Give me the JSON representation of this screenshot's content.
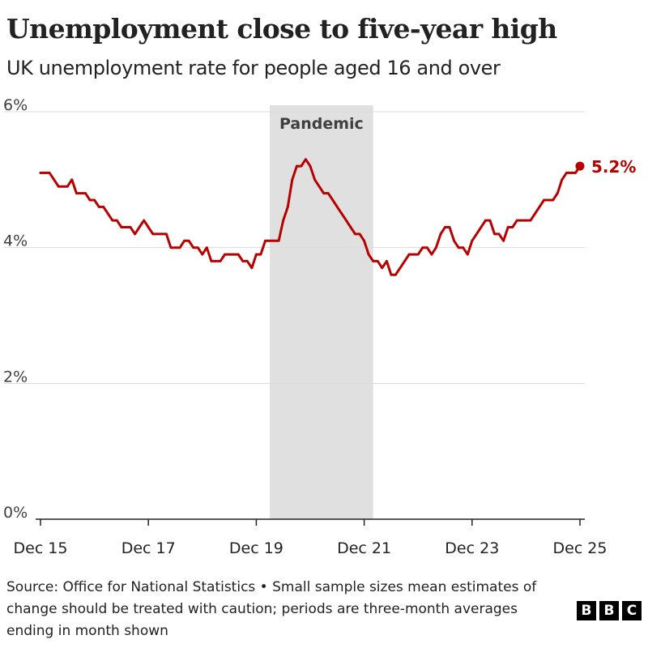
{
  "chart_data": {
    "type": "line",
    "title": "Unemployment close to five-year high",
    "subtitle": "UK unemployment rate for people aged 16 and over",
    "ylim": [
      0,
      6
    ],
    "y_ticks": [
      "0%",
      "2%",
      "4%",
      "6%"
    ],
    "x_ticks": [
      "Dec 15",
      "Dec 17",
      "Dec 19",
      "Dec 21",
      "Dec 23",
      "Dec 25"
    ],
    "xlabel": "",
    "ylabel": "",
    "shaded_region": {
      "label": "Pandemic",
      "from": "Mar 20",
      "to": "Feb 22"
    },
    "end_label": "5.2%",
    "series": [
      {
        "name": "UK unemployment rate (16+)",
        "color": "#b80000",
        "x": [
          "Dec 15",
          "Jan 16",
          "Feb 16",
          "Mar 16",
          "Apr 16",
          "May 16",
          "Jun 16",
          "Jul 16",
          "Aug 16",
          "Sep 16",
          "Oct 16",
          "Nov 16",
          "Dec 16",
          "Jan 17",
          "Feb 17",
          "Mar 17",
          "Apr 17",
          "May 17",
          "Jun 17",
          "Jul 17",
          "Aug 17",
          "Sep 17",
          "Oct 17",
          "Nov 17",
          "Dec 17",
          "Jan 18",
          "Feb 18",
          "Mar 18",
          "Apr 18",
          "May 18",
          "Jun 18",
          "Jul 18",
          "Aug 18",
          "Sep 18",
          "Oct 18",
          "Nov 18",
          "Dec 18",
          "Jan 19",
          "Feb 19",
          "Mar 19",
          "Apr 19",
          "May 19",
          "Jun 19",
          "Jul 19",
          "Aug 19",
          "Sep 19",
          "Oct 19",
          "Nov 19",
          "Dec 19",
          "Jan 20",
          "Feb 20",
          "Mar 20",
          "Apr 20",
          "May 20",
          "Jun 20",
          "Jul 20",
          "Aug 20",
          "Sep 20",
          "Oct 20",
          "Nov 20",
          "Dec 20",
          "Jan 21",
          "Feb 21",
          "Mar 21",
          "Apr 21",
          "May 21",
          "Jun 21",
          "Jul 21",
          "Aug 21",
          "Sep 21",
          "Oct 21",
          "Nov 21",
          "Dec 21",
          "Jan 22",
          "Feb 22",
          "Mar 22",
          "Apr 22",
          "May 22",
          "Jun 22",
          "Jul 22",
          "Aug 22",
          "Sep 22",
          "Oct 22",
          "Nov 22",
          "Dec 22",
          "Jan 23",
          "Feb 23",
          "Mar 23",
          "Apr 23",
          "May 23",
          "Jun 23",
          "Jul 23",
          "Aug 23",
          "Sep 23",
          "Oct 23",
          "Nov 23",
          "Dec 23",
          "Jan 24",
          "Feb 24",
          "Mar 24",
          "Apr 24",
          "May 24",
          "Jun 24",
          "Jul 24",
          "Aug 24",
          "Sep 24",
          "Oct 24",
          "Nov 24",
          "Dec 24",
          "Jan 25",
          "Feb 25",
          "Mar 25",
          "Apr 25",
          "May 25",
          "Jun 25",
          "Jul 25",
          "Aug 25",
          "Sep 25",
          "Oct 25",
          "Nov 25",
          "Dec 25"
        ],
        "values": [
          5.1,
          5.1,
          5.1,
          5.0,
          4.9,
          4.9,
          4.9,
          5.0,
          4.8,
          4.8,
          4.8,
          4.7,
          4.7,
          4.6,
          4.6,
          4.5,
          4.4,
          4.4,
          4.3,
          4.3,
          4.3,
          4.2,
          4.3,
          4.4,
          4.3,
          4.2,
          4.2,
          4.2,
          4.2,
          4.0,
          4.0,
          4.0,
          4.1,
          4.1,
          4.0,
          4.0,
          3.9,
          4.0,
          3.8,
          3.8,
          3.8,
          3.9,
          3.9,
          3.9,
          3.9,
          3.8,
          3.8,
          3.7,
          3.9,
          3.9,
          4.1,
          4.1,
          4.1,
          4.1,
          4.4,
          4.6,
          5.0,
          5.2,
          5.2,
          5.3,
          5.2,
          5.0,
          4.9,
          4.8,
          4.8,
          4.7,
          4.6,
          4.5,
          4.4,
          4.3,
          4.2,
          4.2,
          4.1,
          3.9,
          3.8,
          3.8,
          3.7,
          3.8,
          3.6,
          3.6,
          3.7,
          3.8,
          3.9,
          3.9,
          3.9,
          4.0,
          4.0,
          3.9,
          4.0,
          4.2,
          4.3,
          4.3,
          4.1,
          4.0,
          4.0,
          3.9,
          4.1,
          4.2,
          4.3,
          4.4,
          4.4,
          4.2,
          4.2,
          4.1,
          4.3,
          4.3,
          4.4,
          4.4,
          4.4,
          4.4,
          4.5,
          4.6,
          4.7,
          4.7,
          4.7,
          4.8,
          5.0,
          5.1,
          5.1,
          5.1,
          5.2
        ]
      }
    ]
  },
  "footer": {
    "source": "Source: Office for National Statistics • Small sample sizes mean estimates of change should be treated with caution; periods are three-month averages ending in month shown"
  },
  "branding": {
    "letters": [
      "B",
      "B",
      "C"
    ]
  }
}
